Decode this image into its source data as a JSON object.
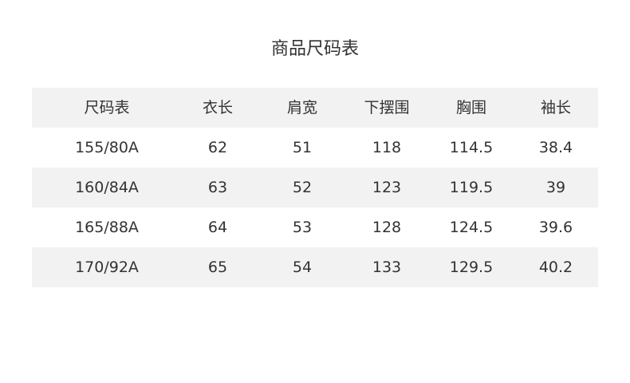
{
  "title": "商品尺码表",
  "colors": {
    "header_bg": "#f2f2f2",
    "stripe_bg": "#f2f2f2",
    "text": "#333333"
  },
  "table": {
    "headers": [
      "尺码表",
      "衣长",
      "肩宽",
      "下摆围",
      "胸围",
      "袖长"
    ],
    "rows": [
      [
        "155/80A",
        "62",
        "51",
        "118",
        "114.5",
        "38.4"
      ],
      [
        "160/84A",
        "63",
        "52",
        "123",
        "119.5",
        "39"
      ],
      [
        "165/88A",
        "64",
        "53",
        "128",
        "124.5",
        "39.6"
      ],
      [
        "170/92A",
        "65",
        "54",
        "133",
        "129.5",
        "40.2"
      ]
    ]
  }
}
